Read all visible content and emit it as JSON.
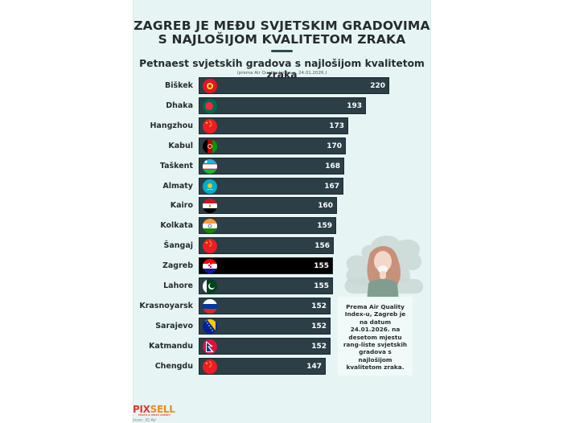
{
  "header": {
    "title_line1": "ZAGREB JE MEĐU SVJETSKIM GRADOVIMA",
    "title_line2": "S NAJLOŠIJOM KVALITETOM ZRAKA",
    "subtitle": "Petnaest svjetskih gradova s najlošijom kvalitetom zraka",
    "source": "(prema Air Quality Index-u, 24.01.2026.)"
  },
  "colors": {
    "background": "#e6f5f3",
    "bar": "#2c3e46",
    "bar_highlight": "#000000",
    "text": "#262b2e",
    "logo_red": "#e03a2a",
    "logo_orange": "#f08a1c"
  },
  "note": {
    "text": "Prema Air Quality Index-u, Zagreb je na datum 24.01.2026. na desetom mjestu rang-liste svjetskih gradova s najlošijom kvalitetom zraka."
  },
  "logo": {
    "part1": "PIX",
    "part2": "SELL",
    "tagline": "PHOTO & VIDEO AGENCY",
    "credit": "Izvor: IQ Air"
  },
  "chart_data": {
    "type": "bar",
    "orientation": "horizontal",
    "title": "Petnaest svjetskih gradova s najlošijom kvalitetom zraka",
    "subtitle": "(prema Air Quality Index-u, 24.01.2026.)",
    "xlabel": "",
    "ylabel": "",
    "grid": false,
    "categories": [
      "Biškek",
      "Dhaka",
      "Hangzhou",
      "Kabul",
      "Taškent",
      "Almaty",
      "Kairo",
      "Kolkata",
      "Šangaj",
      "Zagreb",
      "Lahore",
      "Krasnoyarsk",
      "Sarajevo",
      "Katmandu",
      "Chengdu"
    ],
    "values": [
      220,
      193,
      173,
      170,
      168,
      167,
      160,
      159,
      156,
      155,
      155,
      152,
      152,
      152,
      147
    ],
    "flags": [
      "kyrgyzstan",
      "bangladesh",
      "china",
      "afghanistan",
      "uzbekistan",
      "kazakhstan",
      "egypt",
      "india",
      "china",
      "croatia",
      "pakistan",
      "russia",
      "bosnia",
      "nepal",
      "china"
    ],
    "highlight": "Zagreb"
  }
}
